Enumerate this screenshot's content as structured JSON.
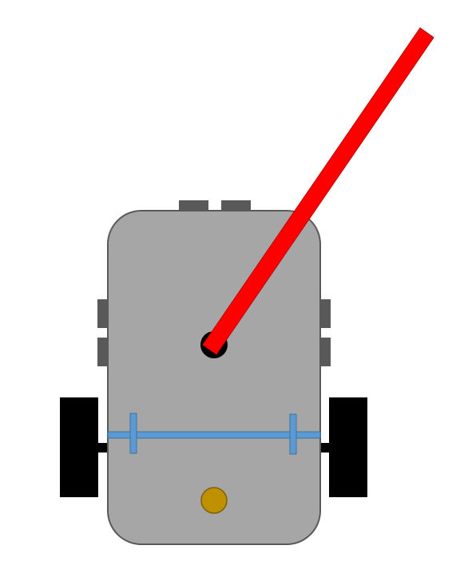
{
  "diagram": {
    "subject": "robot-top-view",
    "colors": {
      "background": "#ffffff",
      "body_fill": "#a6a6a6",
      "body_stroke": "#595959",
      "connector_fill": "#595959",
      "wheel_fill": "#000000",
      "axle_fill": "#000000",
      "axle_bar_fill": "#5b9bd5",
      "axle_bar_stroke": "#41719c",
      "pivot_fill": "#000000",
      "arm_fill": "#ff0000",
      "arm_stroke": "#c00000",
      "caster_fill": "#bf9000",
      "caster_stroke": "#7f6000"
    },
    "icons": {
      "body": "robot-chassis",
      "arm": "laser-arm",
      "caster": "caster-wheel"
    }
  }
}
